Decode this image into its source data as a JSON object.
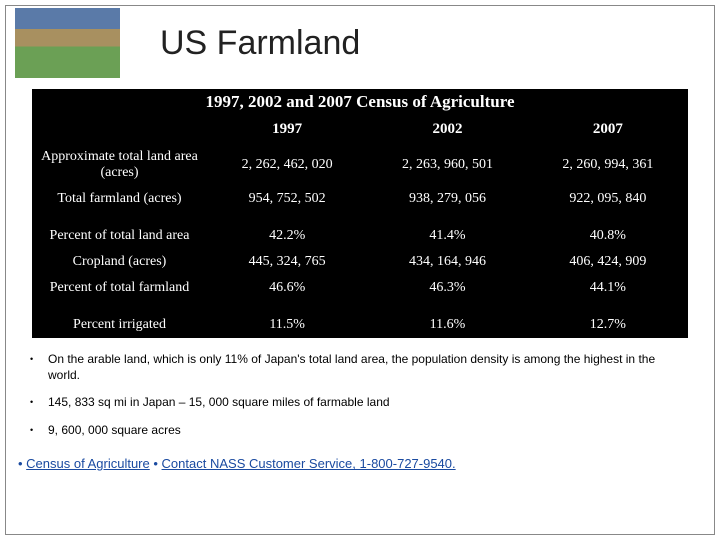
{
  "title": "US Farmland",
  "table": {
    "caption": "1997, 2002 and 2007 Census of Agriculture",
    "columns": [
      "",
      "1997",
      "2002",
      "2007"
    ],
    "rows": [
      {
        "label": "Approximate total land area (acres)",
        "v1997": "2, 262, 462, 020",
        "v2002": "2, 263, 960, 501",
        "v2007": "2, 260, 994, 361"
      },
      {
        "label": "Total farmland (acres)",
        "v1997": "954, 752, 502",
        "v2002": "938, 279, 056",
        "v2007": "922, 095, 840"
      },
      {
        "label": "Percent of total land area",
        "v1997": "42.2%",
        "v2002": "41.4%",
        "v2007": "40.8%",
        "gap": true
      },
      {
        "label": "Cropland (acres)",
        "v1997": "445, 324, 765",
        "v2002": "434, 164, 946",
        "v2007": "406, 424, 909"
      },
      {
        "label": "Percent of total farmland",
        "v1997": "46.6%",
        "v2002": "46.3%",
        "v2007": "44.1%"
      },
      {
        "label": "Percent irrigated",
        "v1997": "11.5%",
        "v2002": "11.6%",
        "v2007": "12.7%",
        "gap": true
      }
    ]
  },
  "bullets": [
    "On the arable land, which is only 11% of Japan's total land area, the population density is among the highest in the world.",
    "145, 833 sq mi in Japan – 15, 000 square miles of farmable land",
    "9, 600, 000 square acres"
  ],
  "footer": {
    "link1": "Census of Agriculture",
    "link2": "Contact NASS Customer Service, 1-800-727-9540."
  },
  "colors": {
    "table_bg": "#000000",
    "table_text": "#ffffff",
    "link_color": "#1a4aa0"
  }
}
